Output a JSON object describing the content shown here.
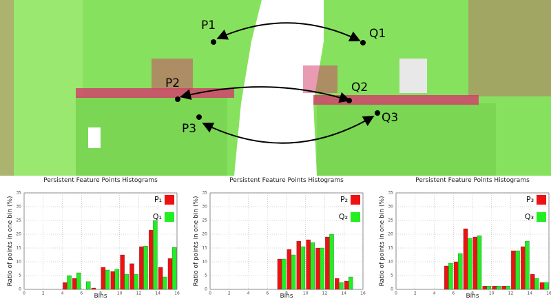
{
  "scene": {
    "labels": [
      "P1",
      "Q1",
      "P2",
      "Q2",
      "P3",
      "Q3"
    ]
  },
  "chart_data": [
    {
      "type": "bar",
      "title": "Persistent Feature Points Histograms",
      "x_label": "Bins",
      "y_label": "Ratio of points in one bin (%)",
      "x": [
        0,
        1,
        2,
        3,
        4,
        5,
        6,
        7,
        8,
        9,
        10,
        11,
        12,
        13,
        14,
        15
      ],
      "series": [
        {
          "name": "P₁",
          "color": "#ee1111",
          "values": [
            0,
            0,
            0,
            0,
            2.5,
            4,
            0,
            0.5,
            8,
            6.5,
            12.5,
            9.3,
            15.5,
            21.5,
            8,
            11.2
          ]
        },
        {
          "name": "Q₁",
          "color": "#22ee22",
          "values": [
            0,
            0,
            0,
            0,
            5,
            6,
            2.8,
            0,
            7,
            7.3,
            5.5,
            5.5,
            15.7,
            25,
            4.5,
            15.2
          ]
        }
      ],
      "xlim": [
        0,
        16
      ],
      "xticks": [
        0,
        2,
        4,
        6,
        8,
        10,
        12,
        14,
        16
      ],
      "ylim": [
        0,
        35
      ],
      "yticks": [
        0,
        5,
        10,
        15,
        20,
        25,
        30,
        35
      ],
      "grid": true,
      "legend": "top-right"
    },
    {
      "type": "bar",
      "title": "Persistent Feature Points Histograms",
      "x_label": "Bins",
      "y_label": "Ratio of points in one bin (%)",
      "x": [
        0,
        1,
        2,
        3,
        4,
        5,
        6,
        7,
        8,
        9,
        10,
        11,
        12,
        13,
        14,
        15
      ],
      "series": [
        {
          "name": "P₂",
          "color": "#ee1111",
          "values": [
            0,
            0,
            0,
            0,
            0,
            0,
            0,
            11,
            14.5,
            17.5,
            18,
            15,
            19,
            4,
            3,
            0
          ]
        },
        {
          "name": "Q₂",
          "color": "#22ee22",
          "values": [
            0,
            0,
            0,
            0,
            0,
            0,
            0,
            11,
            12.5,
            15.5,
            17,
            15,
            20,
            2.5,
            4.5,
            0
          ]
        }
      ],
      "xlim": [
        0,
        16
      ],
      "xticks": [
        0,
        2,
        4,
        6,
        8,
        10,
        12,
        14,
        16
      ],
      "ylim": [
        0,
        35
      ],
      "yticks": [
        0,
        5,
        10,
        15,
        20,
        25,
        30,
        35
      ],
      "grid": true,
      "legend": "top-right"
    },
    {
      "type": "bar",
      "title": "Persistent Feature Points Histograms",
      "x_label": "Bins",
      "y_label": "Ratio of points in one bin (%)",
      "x": [
        0,
        1,
        2,
        3,
        4,
        5,
        6,
        7,
        8,
        9,
        10,
        11,
        12,
        13,
        14,
        15
      ],
      "series": [
        {
          "name": "P₃",
          "color": "#ee1111",
          "values": [
            0,
            0,
            0,
            0,
            0,
            8.5,
            10,
            22,
            19,
            1.2,
            1.2,
            1.2,
            14,
            15.5,
            5.5,
            2.5
          ]
        },
        {
          "name": "Q₃",
          "color": "#22ee22",
          "values": [
            0,
            0,
            0,
            0,
            0,
            9.5,
            13,
            18.5,
            19.5,
            1.2,
            1.2,
            1.2,
            14,
            17.5,
            4,
            2.5
          ]
        }
      ],
      "xlim": [
        0,
        16
      ],
      "xticks": [
        0,
        2,
        4,
        6,
        8,
        10,
        12,
        14,
        16
      ],
      "ylim": [
        0,
        35
      ],
      "yticks": [
        0,
        5,
        10,
        15,
        20,
        25,
        30,
        35
      ],
      "grid": true,
      "legend": "top-right"
    }
  ]
}
